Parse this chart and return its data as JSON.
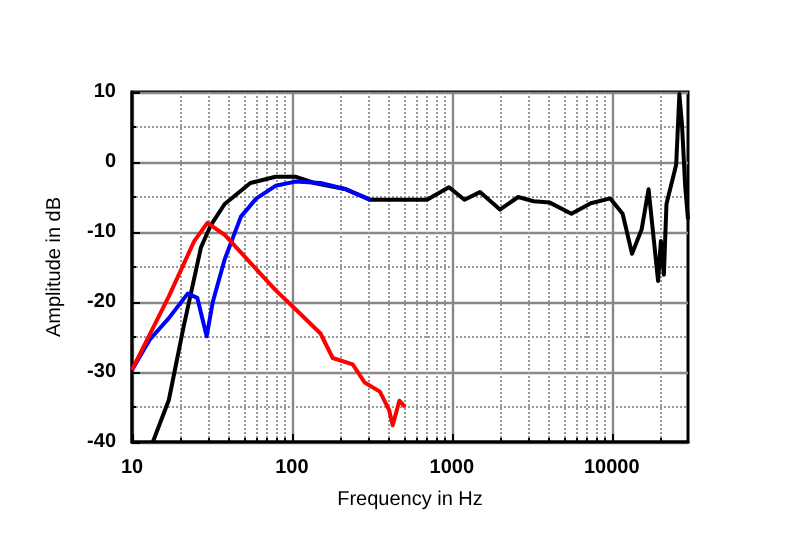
{
  "chart_data": {
    "type": "line",
    "xlabel": "Frequency in Hz",
    "ylabel": "Amplitude in dB",
    "log": "x",
    "xlim": [
      10,
      30000
    ],
    "ylim": [
      -40,
      10
    ],
    "xticks": [
      10,
      {
        "value": 20,
        "label": null
      },
      {
        "value": 30,
        "label": null
      },
      {
        "value": 40,
        "label": null
      },
      {
        "value": 50,
        "label": null
      },
      {
        "value": 60,
        "label": null
      },
      {
        "value": 70,
        "label": null
      },
      {
        "value": 80,
        "label": null
      },
      {
        "value": 90,
        "label": null
      },
      100,
      {
        "value": 200,
        "label": null
      },
      {
        "value": 300,
        "label": null
      },
      {
        "value": 400,
        "label": null
      },
      {
        "value": 500,
        "label": null
      },
      {
        "value": 600,
        "label": null
      },
      {
        "value": 700,
        "label": null
      },
      {
        "value": 800,
        "label": null
      },
      {
        "value": 900,
        "label": null
      },
      1000,
      {
        "value": 2000,
        "label": null
      },
      {
        "value": 3000,
        "label": null
      },
      {
        "value": 4000,
        "label": null
      },
      {
        "value": 5000,
        "label": null
      },
      {
        "value": 6000,
        "label": null
      },
      {
        "value": 7000,
        "label": null
      },
      {
        "value": 8000,
        "label": null
      },
      {
        "value": 9000,
        "label": null
      },
      10000,
      {
        "value": 20000,
        "label": null
      }
    ],
    "yticks": [
      -40,
      {
        "value": -35,
        "label": null
      },
      -30,
      {
        "value": -25,
        "label": null
      },
      -20,
      {
        "value": -15,
        "label": null
      },
      -10,
      {
        "value": -5,
        "label": null
      },
      0,
      {
        "value": 5,
        "label": null
      },
      10
    ],
    "grid": true,
    "marker": "none",
    "line_style": "solid",
    "series": [
      {
        "color": "#000000",
        "x": [
          13.5,
          17,
          21,
          27,
          31,
          38,
          55,
          79,
          105,
          138,
          218,
          310,
          480,
          700,
          960,
          1200,
          1500,
          2000,
          2600,
          3250,
          4100,
          5600,
          7400,
          9800,
          11700,
          13400,
          15400,
          17000,
          19500,
          20300,
          21200,
          22000,
          25300,
          26500,
          27500,
          28800,
          30000
        ],
        "values": [
          -40,
          -34,
          -23.6,
          -12.2,
          -9.1,
          -6,
          -3,
          -2.1,
          -2.1,
          -3,
          -3.9,
          -5.4,
          -5.4,
          -5.4,
          -3.6,
          -5.4,
          -4.3,
          -6.8,
          -5,
          -5.6,
          -5.8,
          -7.4,
          -5.9,
          -5.2,
          -7.4,
          -13.1,
          -9.6,
          -3.9,
          -17,
          -11.3,
          -16.1,
          -6,
          -0.4,
          9.7,
          5.4,
          -3.4,
          -8.2
        ]
      },
      {
        "color": "#0000ff",
        "x": [
          10,
          12.9,
          17,
          22.3,
          25.6,
          29.3,
          32,
          38,
          48,
          60,
          79,
          105,
          151,
          218,
          310
        ],
        "values": [
          -29.7,
          -25.4,
          -22.3,
          -18.8,
          -19.4,
          -24.9,
          -20,
          -13.9,
          -7.8,
          -5.2,
          -3.4,
          -2.8,
          -3,
          -3.9,
          -5.4
        ]
      },
      {
        "color": "#ff0000",
        "x": [
          10,
          17,
          24.5,
          29.6,
          38,
          55,
          79,
          105,
          151,
          180,
          240,
          285,
          355,
          405,
          427,
          470,
          510
        ],
        "values": [
          -29.7,
          -19.2,
          -11.3,
          -8.7,
          -10.4,
          -14.4,
          -18.3,
          -21,
          -24.5,
          -28,
          -28.9,
          -31.5,
          -32.8,
          -35.4,
          -37.6,
          -34.1,
          -35
        ]
      }
    ]
  }
}
